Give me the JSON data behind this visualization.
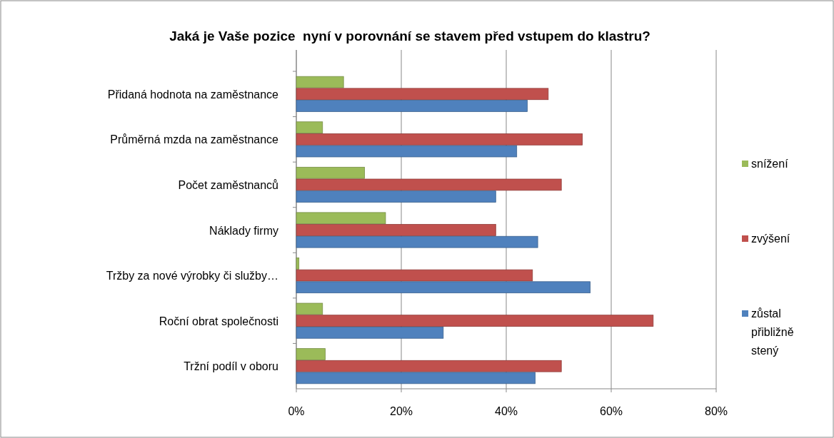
{
  "chart_data": {
    "type": "bar",
    "orientation": "horizontal",
    "title": "Jaká je Vaše pozice  nyní v porovnání se stavem před vstupem do klastru?",
    "categories": [
      "Přidaná hodnota na zaměstnance",
      "Průměrná mzda na zaměstnance",
      "Počet zaměstnanců",
      "Náklady firmy",
      "Tržby za nové výrobky či služby…",
      "Roční obrat společnosti",
      "Tržní podíl v oboru"
    ],
    "series": [
      {
        "name": "snížení",
        "color": "#9bbb59",
        "values": [
          9,
          5,
          13,
          17,
          0.5,
          5,
          5.5
        ]
      },
      {
        "name": "zvýšení",
        "color": "#c0504d",
        "values": [
          48,
          54.5,
          50.5,
          38,
          45,
          68,
          50.5
        ]
      },
      {
        "name": "zůstal přibližně stený",
        "color": "#4f81bd",
        "values": [
          44,
          42,
          38,
          46,
          56,
          28,
          45.5
        ]
      }
    ],
    "xlim": [
      0,
      80
    ],
    "xticks": [
      {
        "value": 0,
        "label": "0%"
      },
      {
        "value": 20,
        "label": "20%"
      },
      {
        "value": 40,
        "label": "40%"
      },
      {
        "value": 60,
        "label": "60%"
      },
      {
        "value": 80,
        "label": "80%"
      }
    ],
    "grid": "x",
    "legend": "right"
  }
}
